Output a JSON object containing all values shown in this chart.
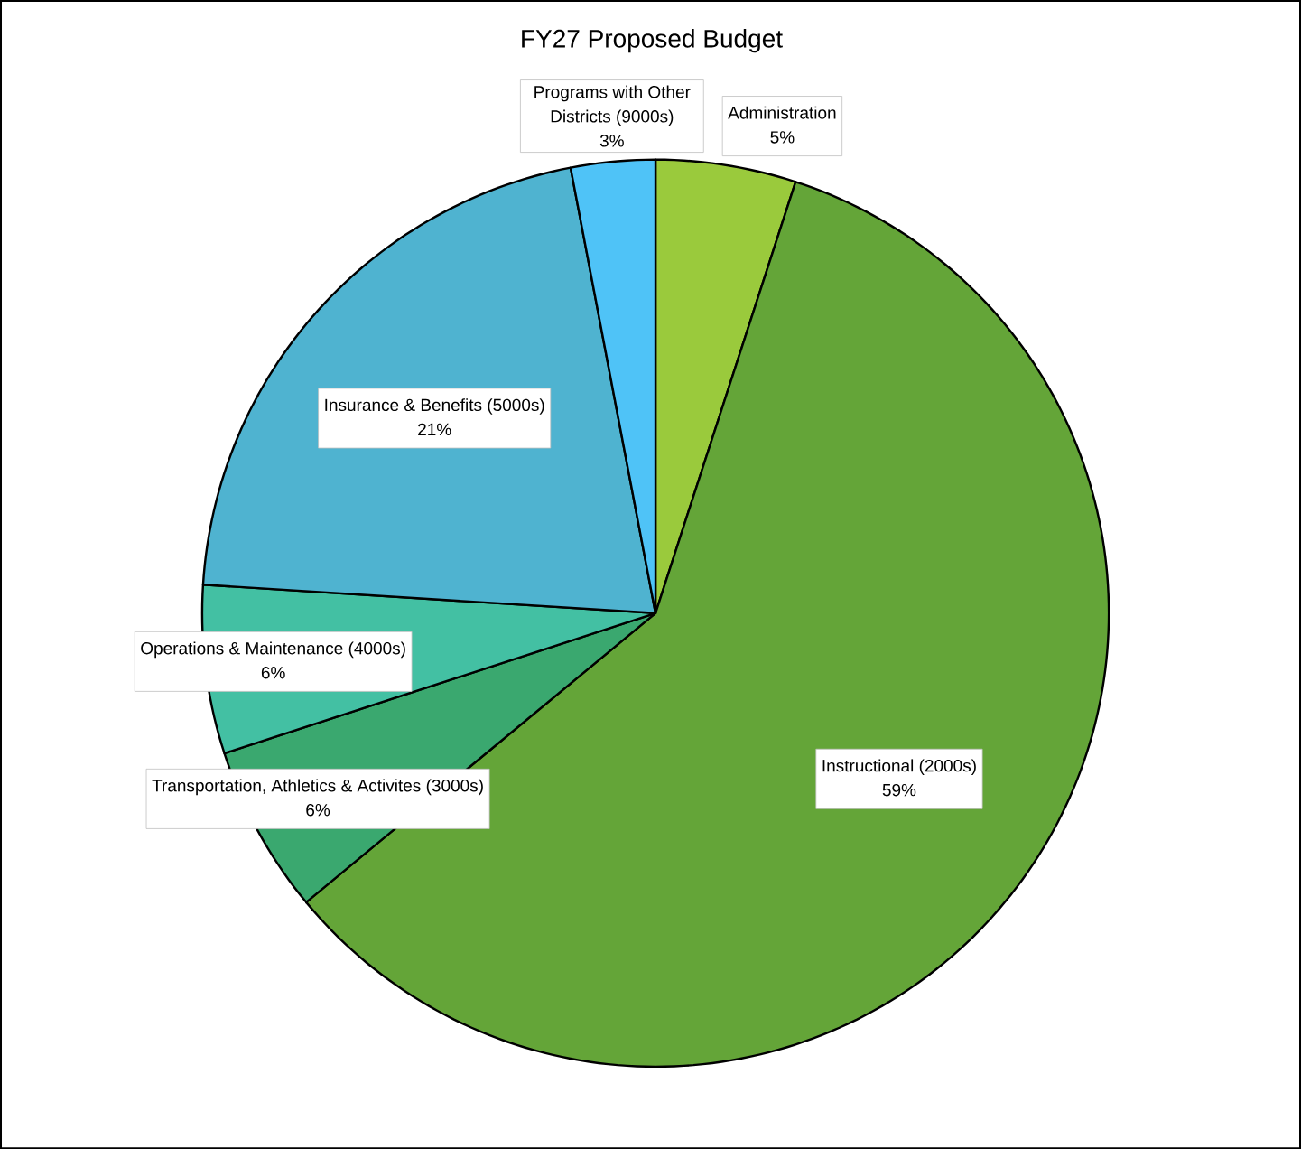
{
  "chart_data": {
    "type": "pie",
    "title": "FY27 Proposed Budget",
    "categories": [
      "Administration",
      "Instructional (2000s)",
      "Transportation, Athletics & Activites (3000s)",
      "Operations & Maintenance (4000s)",
      "Insurance & Benefits (5000s)",
      "Programs with Other Districts (9000s)"
    ],
    "values": [
      5,
      59,
      6,
      6,
      21,
      3
    ],
    "value_labels": [
      "5%",
      "59%",
      "6%",
      "6%",
      "21%",
      "3%"
    ],
    "colors": [
      "#9aca3c",
      "#64a538",
      "#3aa86f",
      "#43c0a3",
      "#4fb3d0",
      "#4fc3f7"
    ]
  }
}
